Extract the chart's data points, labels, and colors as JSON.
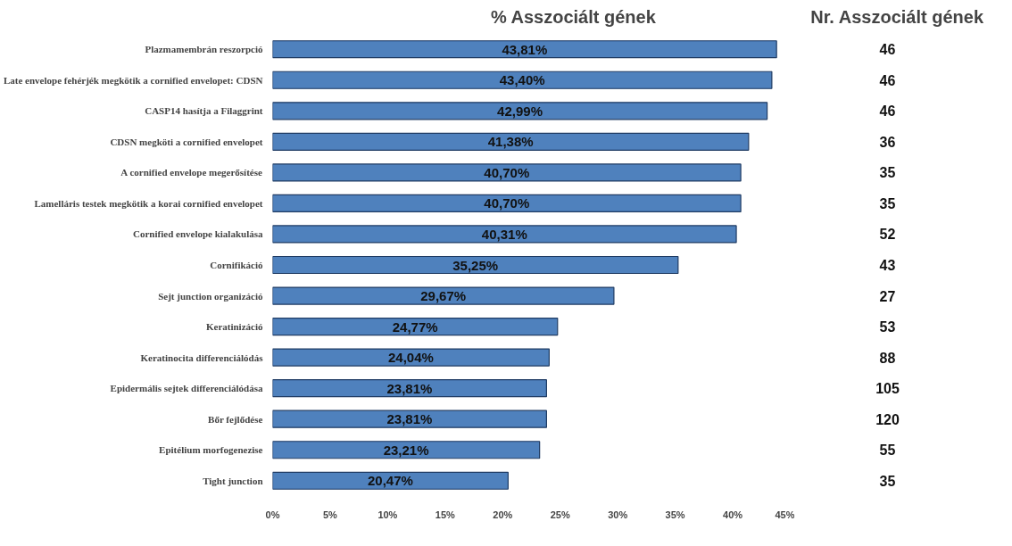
{
  "chart_data": [
    {
      "type": "bar",
      "orientation": "horizontal",
      "title": "% Asszociált gének",
      "categories": [
        "Plazmamembrán reszorpció",
        "Late envelope fehérjék megkötik a cornified envelopet: CDSN",
        "CASP14 hasítja a Filaggrint",
        "CDSN megköti a cornified envelopet",
        "A cornified envelope megerősítése",
        "Lamelláris testek megkötik a korai cornified envelopet",
        "Cornified envelope kialakulása",
        "Cornifikáció",
        "Sejt junction organizáció",
        "Keratinizáció",
        "Keratinocita differenciálódás",
        "Epidermális sejtek differenciálódása",
        "Bőr fejlődése",
        "Epitélium morfogenezise",
        "Tight junction"
      ],
      "values": [
        43.81,
        43.4,
        42.99,
        41.38,
        40.7,
        40.7,
        40.31,
        35.25,
        29.67,
        24.77,
        24.04,
        23.81,
        23.81,
        23.21,
        20.47
      ],
      "value_labels": [
        "43,81%",
        "43,40%",
        "42,99%",
        "41,38%",
        "40,70%",
        "40,70%",
        "40,31%",
        "35,25%",
        "29,67%",
        "24,77%",
        "24,04%",
        "23,81%",
        "23,81%",
        "23,21%",
        "20,47%"
      ],
      "color": "#4f81bd",
      "xlim": [
        0,
        45
      ],
      "xticks": [
        {
          "value": 0,
          "label": "0%"
        },
        {
          "value": 5,
          "label": "5%"
        },
        {
          "value": 10,
          "label": "10%"
        },
        {
          "value": 15,
          "label": "15%"
        },
        {
          "value": 20,
          "label": "20%"
        },
        {
          "value": 25,
          "label": "25%"
        },
        {
          "value": 30,
          "label": "30%"
        },
        {
          "value": 35,
          "label": "35%"
        },
        {
          "value": 40,
          "label": "40%"
        },
        {
          "value": 45,
          "label": "45%"
        }
      ],
      "grid": false
    },
    {
      "type": "other",
      "title": "Nr. Asszociált gének",
      "values": [
        46,
        46,
        46,
        36,
        35,
        35,
        52,
        43,
        27,
        53,
        88,
        105,
        120,
        55,
        35
      ],
      "data_labels": true
    }
  ]
}
